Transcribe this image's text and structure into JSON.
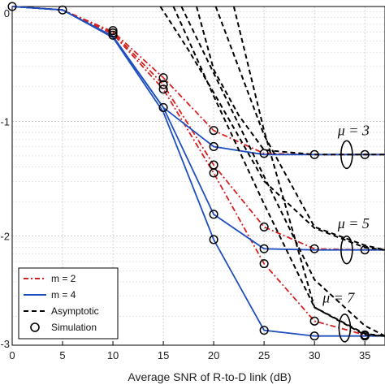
{
  "chart_data": {
    "type": "line",
    "xlabel": "Average SNR of R-to-D link (dB)",
    "x_ticks": [
      0,
      5,
      10,
      15,
      20,
      25,
      30,
      35
    ],
    "xlim": [
      0,
      37
    ],
    "y_scale": "log",
    "y_tick_labels": [
      "0",
      "-1",
      "-2",
      "-3"
    ],
    "ylim": [
      -2.95,
      0
    ],
    "grid": true,
    "legend": {
      "placement": "bottom-left",
      "entries": [
        {
          "label": "m = 2",
          "style": "dashdot",
          "color": "#d62020"
        },
        {
          "label": "m = 4",
          "style": "solid",
          "color": "#1f4fbf"
        },
        {
          "label": "Asymptotic",
          "style": "dashed",
          "color": "#000000"
        },
        {
          "label": "Simulation",
          "style": "marker-circle",
          "color": "#000000"
        }
      ]
    },
    "annotations": [
      "μ = 3",
      "μ = 5",
      "μ = 7"
    ],
    "series": [
      {
        "group": "m = 2",
        "x": [
          0,
          5,
          10,
          15,
          20,
          25,
          30,
          35,
          37
        ],
        "y": [
          0,
          -0.03,
          -0.22,
          -0.62,
          -1.08,
          -1.28,
          -1.29,
          -1.29,
          -1.29
        ]
      },
      {
        "group": "m = 2",
        "x": [
          0,
          5,
          10,
          15,
          20,
          25,
          30,
          35,
          37
        ],
        "y": [
          0,
          -0.03,
          -0.23,
          -0.68,
          -1.38,
          -1.92,
          -2.11,
          -2.12,
          -2.12
        ]
      },
      {
        "group": "m = 2",
        "x": [
          0,
          5,
          10,
          15,
          20,
          25,
          30,
          35,
          37
        ],
        "y": [
          0,
          -0.03,
          -0.24,
          -0.72,
          -1.45,
          -2.24,
          -2.74,
          -2.86,
          -2.87
        ]
      },
      {
        "group": "m = 4",
        "x": [
          0,
          5,
          10,
          15,
          20,
          25,
          30,
          35,
          37
        ],
        "y": [
          0,
          -0.03,
          -0.26,
          -0.88,
          -1.22,
          -1.29,
          -1.29,
          -1.29,
          -1.29
        ]
      },
      {
        "group": "m = 4",
        "x": [
          0,
          5,
          10,
          15,
          20,
          25,
          30,
          35,
          37
        ],
        "y": [
          0,
          -0.03,
          -0.26,
          -0.88,
          -1.81,
          -2.11,
          -2.12,
          -2.12,
          -2.12
        ]
      },
      {
        "group": "m = 4",
        "x": [
          0,
          5,
          10,
          15,
          20,
          25,
          30,
          35,
          37
        ],
        "y": [
          0,
          -0.03,
          -0.27,
          -0.92,
          -2.03,
          -2.82,
          -2.87,
          -2.87,
          -2.87
        ]
      },
      {
        "group": "Asymptotic",
        "x": [
          18.3,
          20,
          22.5,
          25,
          30,
          35,
          37
        ],
        "y": [
          0,
          -0.55,
          -0.95,
          -1.25,
          -1.29,
          -1.29,
          -1.29
        ]
      },
      {
        "group": "Asymptotic",
        "x": [
          20.2,
          25,
          30,
          35,
          37
        ],
        "y": [
          0,
          -1.12,
          -1.92,
          -2.08,
          -2.12
        ]
      },
      {
        "group": "Asymptotic",
        "x": [
          22,
          25,
          30,
          35,
          37
        ],
        "y": [
          0,
          -1.08,
          -2.62,
          -2.85,
          -2.87
        ]
      },
      {
        "group": "Asymptotic",
        "x": [
          14.7,
          17.5,
          20,
          25,
          30,
          35,
          37
        ],
        "y": [
          0,
          -0.38,
          -0.75,
          -1.52,
          -1.93,
          -2.1,
          -2.12
        ]
      },
      {
        "group": "Asymptotic",
        "x": [
          16.8,
          20,
          25,
          30,
          35,
          37
        ],
        "y": [
          0,
          -0.58,
          -1.48,
          -2.38,
          -2.78,
          -2.87
        ]
      },
      {
        "group": "Asymptotic",
        "x": [
          16,
          20,
          25,
          30,
          35,
          37
        ],
        "y": [
          0,
          -0.78,
          -1.72,
          -2.62,
          -2.86,
          -2.87
        ]
      }
    ],
    "simulation_points": [
      {
        "x": 0,
        "y": 0
      },
      {
        "x": 5,
        "y": -0.03
      },
      {
        "x": 10,
        "y": -0.21
      },
      {
        "x": 10,
        "y": -0.23
      },
      {
        "x": 10,
        "y": -0.25
      },
      {
        "x": 15,
        "y": -0.62
      },
      {
        "x": 15,
        "y": -0.68
      },
      {
        "x": 15,
        "y": -0.72
      },
      {
        "x": 15,
        "y": -0.88
      },
      {
        "x": 20,
        "y": -1.08
      },
      {
        "x": 20,
        "y": -1.22
      },
      {
        "x": 20,
        "y": -1.38
      },
      {
        "x": 20,
        "y": -1.45
      },
      {
        "x": 20,
        "y": -1.81
      },
      {
        "x": 20,
        "y": -2.03
      },
      {
        "x": 25,
        "y": -1.28
      },
      {
        "x": 25,
        "y": -1.92
      },
      {
        "x": 25,
        "y": -2.11
      },
      {
        "x": 25,
        "y": -2.24
      },
      {
        "x": 25,
        "y": -2.82
      },
      {
        "x": 30,
        "y": -1.29
      },
      {
        "x": 30,
        "y": -2.11
      },
      {
        "x": 30,
        "y": -2.74
      },
      {
        "x": 30,
        "y": -2.87
      },
      {
        "x": 35,
        "y": -1.29
      },
      {
        "x": 35,
        "y": -2.12
      },
      {
        "x": 35,
        "y": -2.86
      },
      {
        "x": 35,
        "y": -2.87
      }
    ]
  }
}
